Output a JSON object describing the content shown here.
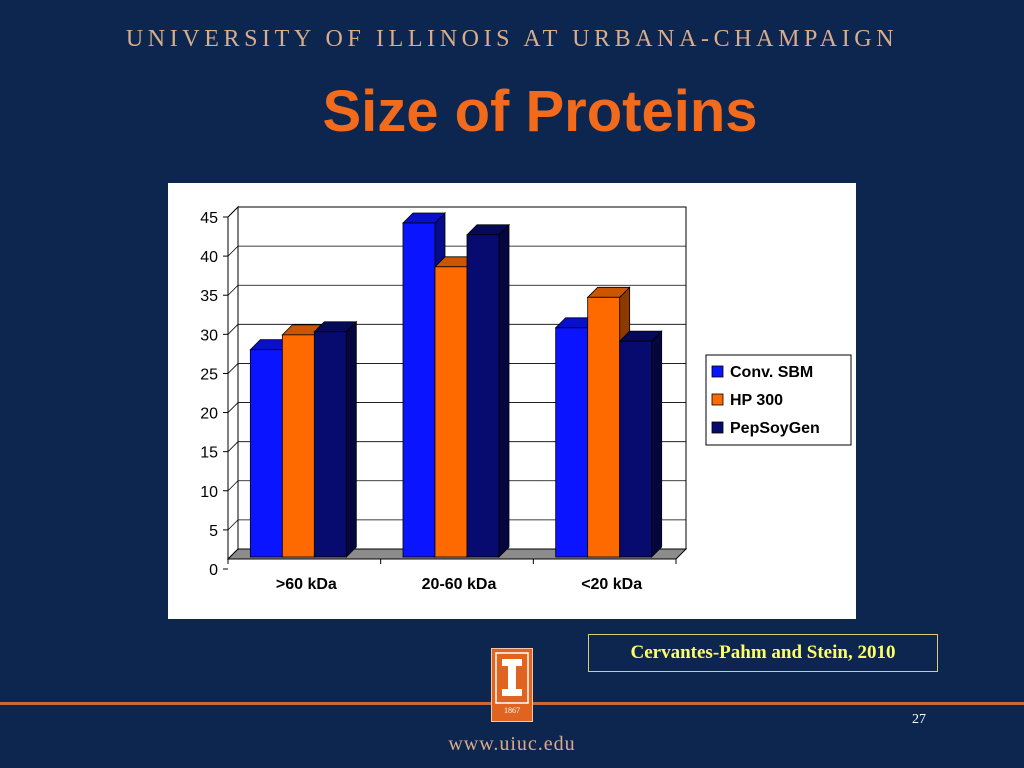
{
  "header": {
    "university": "UNIVERSITY OF ILLINOIS AT URBANA-CHAMPAIGN",
    "title": "Size of Proteins"
  },
  "chart_data": {
    "type": "bar",
    "categories": [
      ">60 kDa",
      "20-60 kDa",
      "<20 kDa"
    ],
    "series": [
      {
        "name": "Conv. SBM",
        "color": "#0a14ff",
        "values": [
          26.5,
          42.7,
          29.3
        ]
      },
      {
        "name": "HP 300",
        "color": "#ff6a00",
        "values": [
          28.4,
          37.1,
          33.2
        ]
      },
      {
        "name": "PepSoyGen",
        "color": "#070a6e",
        "values": [
          28.8,
          41.2,
          27.6
        ]
      }
    ],
    "yticks": [
      "0",
      "5",
      "10",
      "15",
      "20",
      "25",
      "30",
      "35",
      "40",
      "45"
    ],
    "ylim": [
      0,
      45
    ],
    "grid": true,
    "legend": "right"
  },
  "citation": "Cervantes-Pahm and Stein, 2010",
  "footer": {
    "page_number": "27",
    "url": "www.uiuc.edu",
    "logo_year": "1867"
  }
}
